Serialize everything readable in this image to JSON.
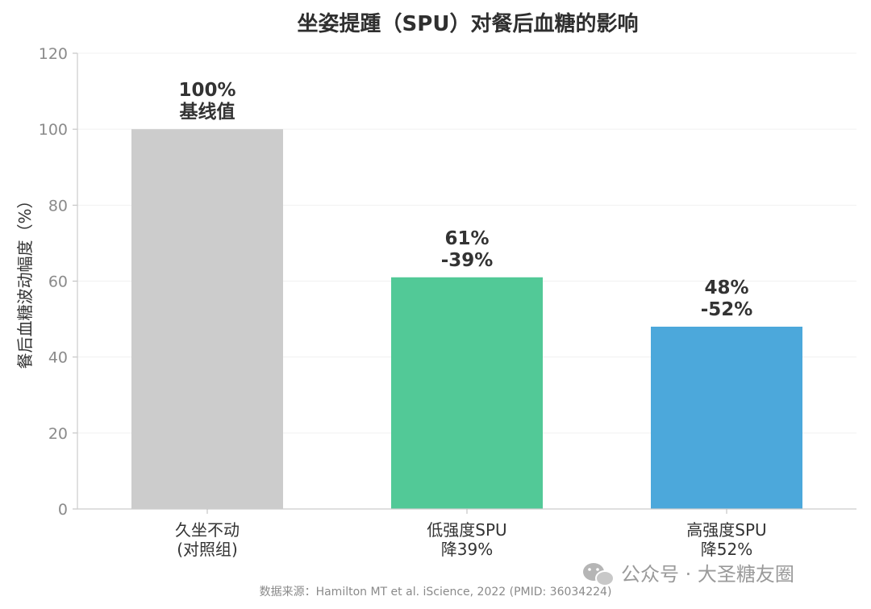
{
  "chart_data": {
    "type": "bar",
    "title": "坐姿提踵（SPU）对餐后血糖的影响",
    "xlabel": "",
    "ylabel": "餐后血糖波动幅度（%）",
    "ylim": [
      0,
      120
    ],
    "yticks": [
      0,
      20,
      40,
      60,
      80,
      100,
      120
    ],
    "grid": true,
    "categories": [
      [
        "久坐不动",
        "(对照组)"
      ],
      [
        "低强度SPU",
        "降39%"
      ],
      [
        "高强度SPU",
        "降52%"
      ]
    ],
    "values": [
      100,
      61,
      48
    ],
    "data_labels": [
      [
        "100%",
        "基线值"
      ],
      [
        "61%",
        "-39%"
      ],
      [
        "48%",
        "-52%"
      ]
    ],
    "colors": [
      "#cccccc",
      "#52c997",
      "#4ca8db"
    ]
  },
  "source_note": "数据来源：Hamilton MT et al. iScience, 2022 (PMID: 36034224)",
  "watermark": "公众号 · 大圣糖友圈"
}
